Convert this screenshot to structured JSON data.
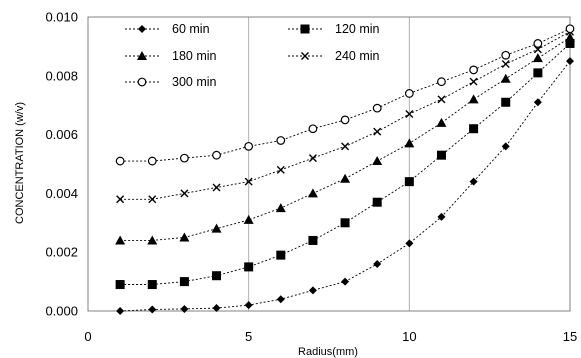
{
  "chart_data": {
    "type": "line",
    "xlabel": "Radius(mm)",
    "ylabel": "CONCENTRATION (w/v)",
    "xlim": [
      0,
      15
    ],
    "ylim": [
      0,
      0.01
    ],
    "x_ticks": [
      "0",
      "5",
      "10",
      "15"
    ],
    "y_ticks": [
      "0.000",
      "0.002",
      "0.004",
      "0.006",
      "0.008",
      "0.010"
    ],
    "grid": "vertical",
    "legend_position": "top-left",
    "x": [
      1,
      2,
      3,
      4,
      5,
      6,
      7,
      8,
      9,
      10,
      11,
      12,
      13,
      14,
      15
    ],
    "series": [
      {
        "name": "60 min",
        "marker": "diamond",
        "values": [
          0.0,
          5e-05,
          7e-05,
          0.0001,
          0.0002,
          0.0004,
          0.0007,
          0.001,
          0.0016,
          0.0023,
          0.0032,
          0.0044,
          0.0056,
          0.0071,
          0.0085
        ]
      },
      {
        "name": "120 min",
        "marker": "square",
        "values": [
          0.0009,
          0.0009,
          0.001,
          0.0012,
          0.0015,
          0.0019,
          0.0024,
          0.003,
          0.0037,
          0.0044,
          0.0053,
          0.0062,
          0.0071,
          0.0081,
          0.0091
        ]
      },
      {
        "name": "180 min",
        "marker": "triangle",
        "values": [
          0.0024,
          0.0024,
          0.0025,
          0.0028,
          0.0031,
          0.0035,
          0.004,
          0.0045,
          0.0051,
          0.0057,
          0.0064,
          0.0072,
          0.0079,
          0.0086,
          0.0093
        ]
      },
      {
        "name": "240 min",
        "marker": "x",
        "values": [
          0.0038,
          0.0038,
          0.004,
          0.0042,
          0.0044,
          0.0048,
          0.0052,
          0.0056,
          0.0061,
          0.0067,
          0.0072,
          0.0078,
          0.0084,
          0.0089,
          0.0095
        ]
      },
      {
        "name": "300 min",
        "marker": "circle",
        "values": [
          0.0051,
          0.0051,
          0.0052,
          0.0053,
          0.0056,
          0.0058,
          0.0062,
          0.0065,
          0.0069,
          0.0074,
          0.0078,
          0.0082,
          0.0087,
          0.0091,
          0.0096
        ]
      }
    ]
  }
}
